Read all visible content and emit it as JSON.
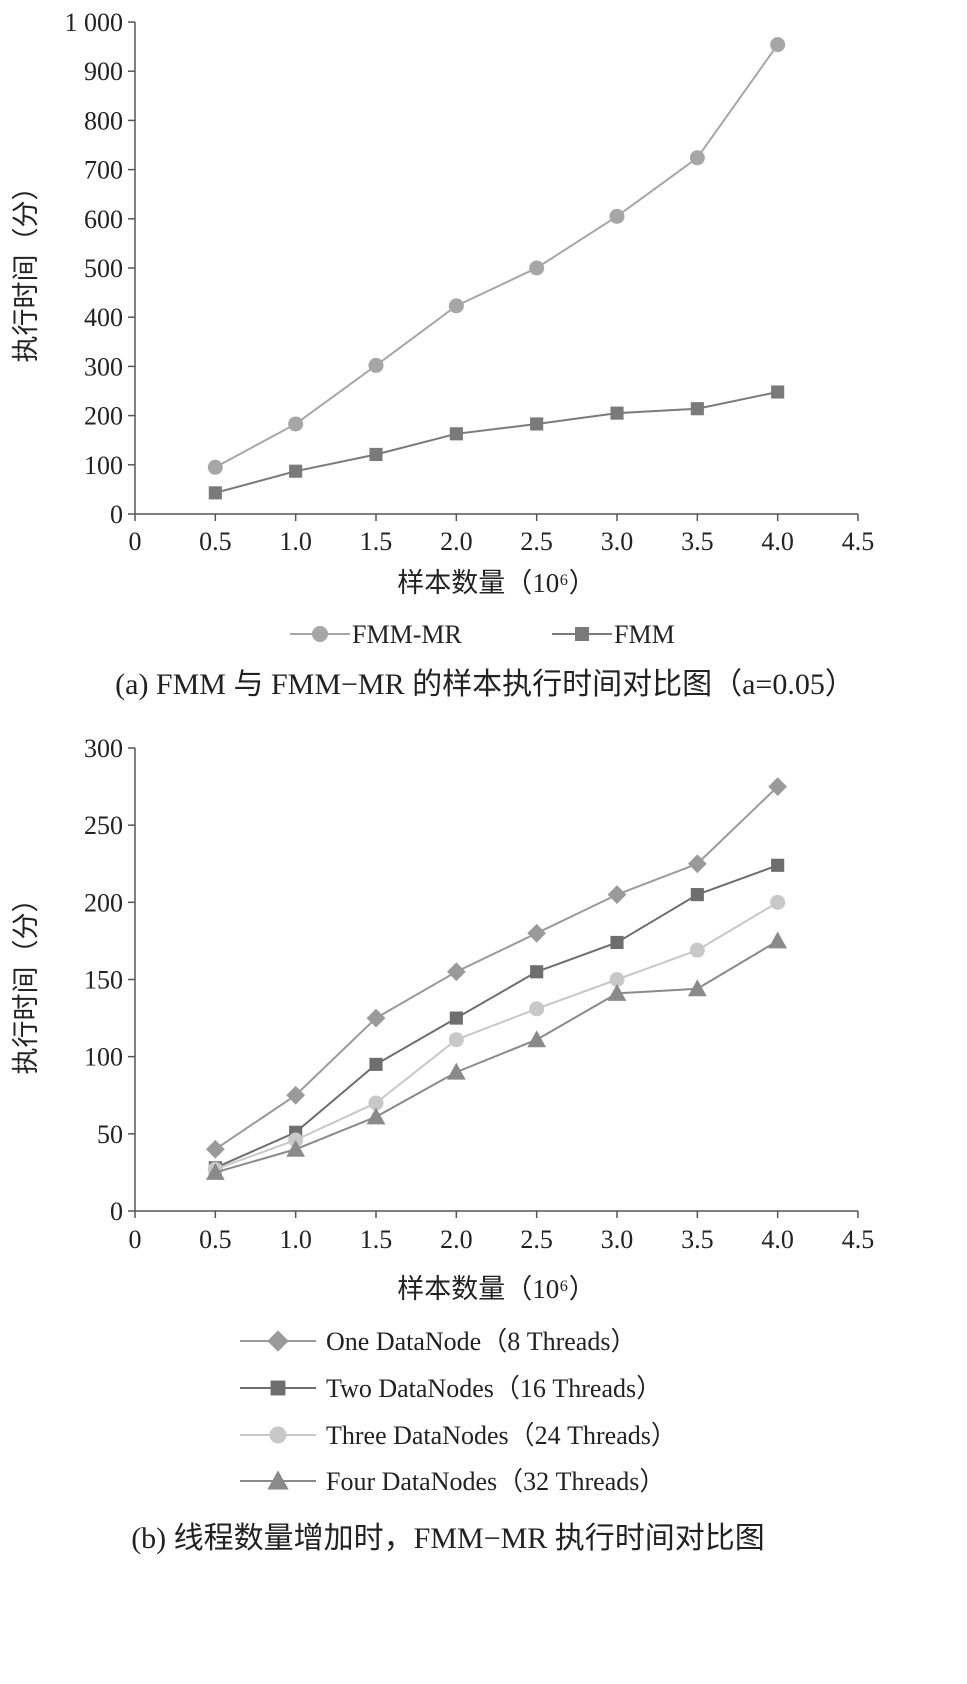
{
  "chart_data": [
    {
      "type": "line",
      "xlabel": "样本数量（10⁶）",
      "ylabel": "执行时间（分）",
      "xlim": [
        0,
        4.5
      ],
      "ylim": [
        0,
        1000
      ],
      "xticks": [
        "0",
        "0.5",
        "1.0",
        "1.5",
        "2.0",
        "2.5",
        "3.0",
        "3.5",
        "4.0",
        "4.5"
      ],
      "yticks": [
        "0",
        "100",
        "200",
        "300",
        "400",
        "500",
        "600",
        "700",
        "800",
        "900",
        "1 000"
      ],
      "grid": false,
      "legend_position": "bottom",
      "caption": "(a) FMM 与 FMM−MR 的样本执行时间对比图（a=0.05）",
      "series": [
        {
          "name": "FMM-MR",
          "marker": "circle",
          "color": "#a6a6a6",
          "x": [
            0.5,
            1.0,
            1.5,
            2.0,
            2.5,
            3.0,
            3.5,
            4.0
          ],
          "values": [
            95,
            183,
            302,
            423,
            500,
            605,
            724,
            954
          ]
        },
        {
          "name": "FMM",
          "marker": "square",
          "color": "#7a7a7a",
          "x": [
            0.5,
            1.0,
            1.5,
            2.0,
            2.5,
            3.0,
            3.5,
            4.0
          ],
          "values": [
            43,
            87,
            121,
            163,
            183,
            205,
            214,
            248
          ]
        }
      ]
    },
    {
      "type": "line",
      "xlabel": "样本数量（10⁶）",
      "ylabel": "执行时间（分）",
      "xlim": [
        0,
        4.5
      ],
      "ylim": [
        0,
        300
      ],
      "xticks": [
        "0",
        "0.5",
        "1.0",
        "1.5",
        "2.0",
        "2.5",
        "3.0",
        "3.5",
        "4.0",
        "4.5"
      ],
      "yticks": [
        "0",
        "50",
        "100",
        "150",
        "200",
        "250",
        "300"
      ],
      "grid": false,
      "legend_position": "bottom",
      "caption": "(b) 线程数量增加时，FMM−MR 执行时间对比图",
      "series": [
        {
          "name": "One DataNode（8 Threads）",
          "marker": "diamond",
          "color": "#9a9a9a",
          "x": [
            0.5,
            1.0,
            1.5,
            2.0,
            2.5,
            3.0,
            3.5,
            4.0
          ],
          "values": [
            40,
            75,
            125,
            155,
            180,
            205,
            225,
            275
          ]
        },
        {
          "name": "Two DataNodes（16 Threads）",
          "marker": "square",
          "color": "#6e6e6e",
          "x": [
            0.5,
            1.0,
            1.5,
            2.0,
            2.5,
            3.0,
            3.5,
            4.0
          ],
          "values": [
            28,
            51,
            95,
            125,
            155,
            174,
            205,
            224
          ]
        },
        {
          "name": "Three DataNodes（24 Threads）",
          "marker": "circle",
          "color": "#c8c8c8",
          "x": [
            0.5,
            1.0,
            1.5,
            2.0,
            2.5,
            3.0,
            3.5,
            4.0
          ],
          "values": [
            27,
            46,
            70,
            111,
            131,
            150,
            169,
            200
          ]
        },
        {
          "name": "Four DataNodes（32 Threads）",
          "marker": "triangle",
          "color": "#8a8a8a",
          "x": [
            0.5,
            1.0,
            1.5,
            2.0,
            2.5,
            3.0,
            3.5,
            4.0
          ],
          "values": [
            25,
            40,
            61,
            90,
            111,
            141,
            144,
            175
          ]
        }
      ]
    }
  ]
}
